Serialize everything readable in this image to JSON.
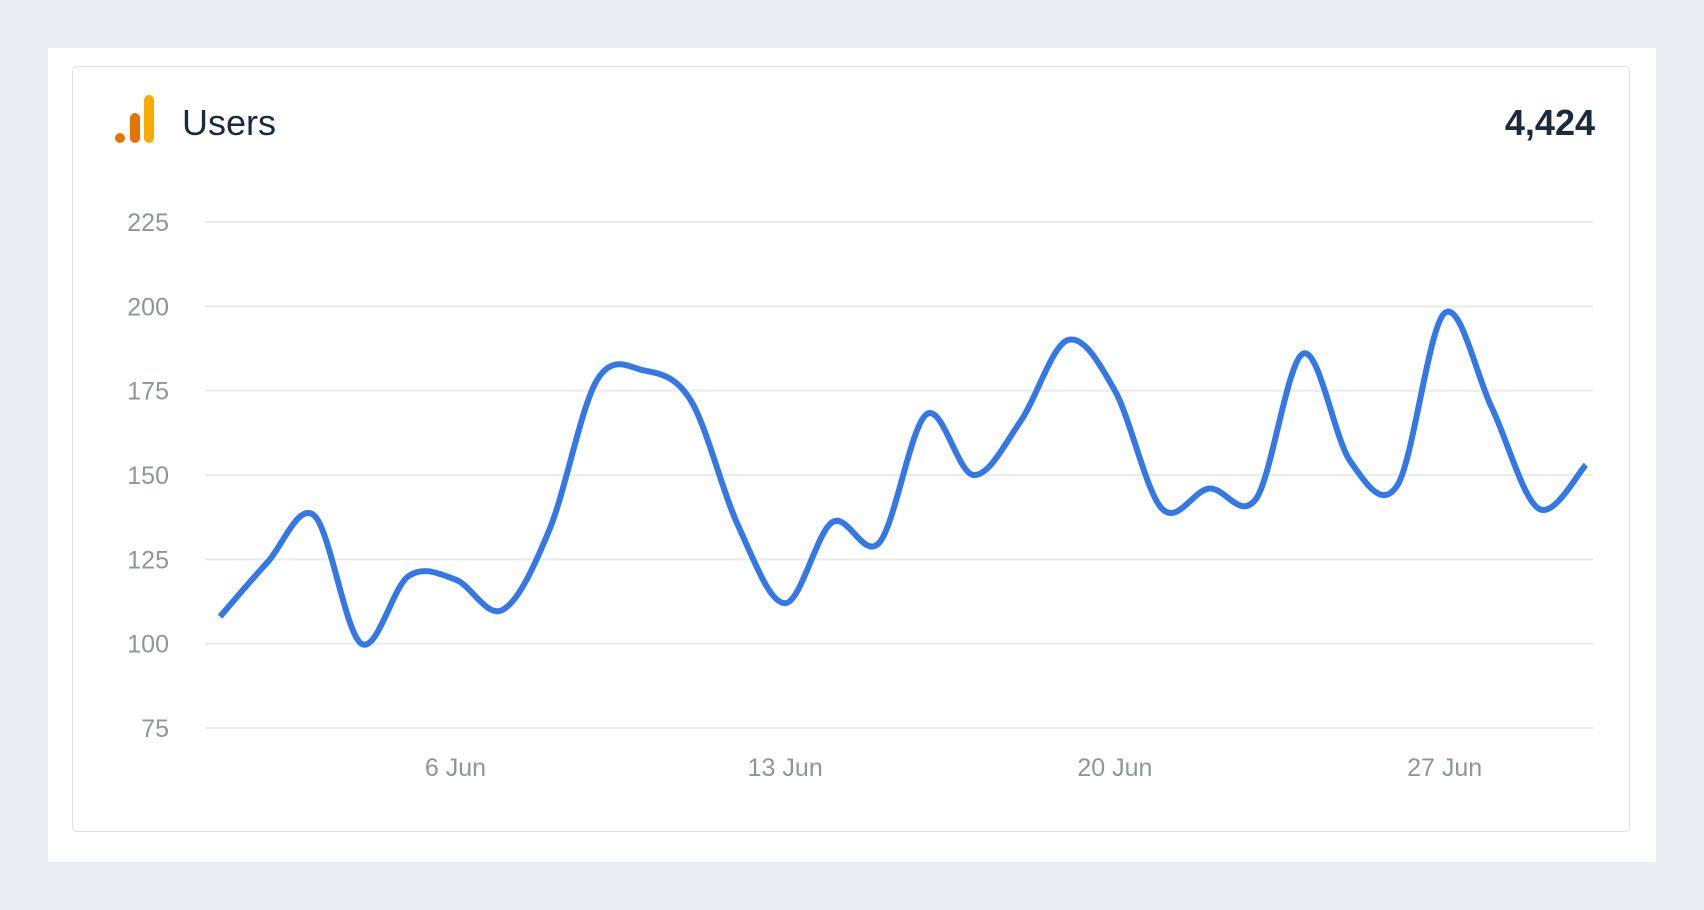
{
  "card": {
    "title": "Users",
    "total": "4,424",
    "icon": "google-analytics-icon"
  },
  "colors": {
    "line": "#3478e5",
    "grid": "#e9ebee",
    "tick_text": "#8f959c",
    "icon_dark": "#e37400",
    "icon_light": "#f9ab00"
  },
  "chart_data": {
    "type": "line",
    "title": "Users",
    "xlabel": "",
    "ylabel": "",
    "x": [
      1,
      2,
      3,
      4,
      5,
      6,
      7,
      8,
      9,
      10,
      11,
      12,
      13,
      14,
      15,
      16,
      17,
      18,
      19,
      20,
      21,
      22,
      23,
      24,
      25,
      26,
      27,
      28,
      29,
      30
    ],
    "x_ticks": [
      {
        "day": 6,
        "label": "6 Jun"
      },
      {
        "day": 13,
        "label": "13 Jun"
      },
      {
        "day": 20,
        "label": "20 Jun"
      },
      {
        "day": 27,
        "label": "27 Jun"
      }
    ],
    "series": [
      {
        "values": [
          108,
          124,
          138,
          100,
          120,
          119,
          110,
          134,
          178,
          181,
          172,
          135,
          112,
          136,
          130,
          168,
          150,
          166,
          190,
          175,
          140,
          146,
          143,
          186,
          154,
          147,
          198,
          170,
          140,
          153
        ]
      }
    ],
    "y_ticks": [
      75,
      100,
      125,
      150,
      175,
      200,
      225
    ],
    "ylim": [
      75,
      225
    ],
    "grid": true,
    "legend": "none"
  }
}
